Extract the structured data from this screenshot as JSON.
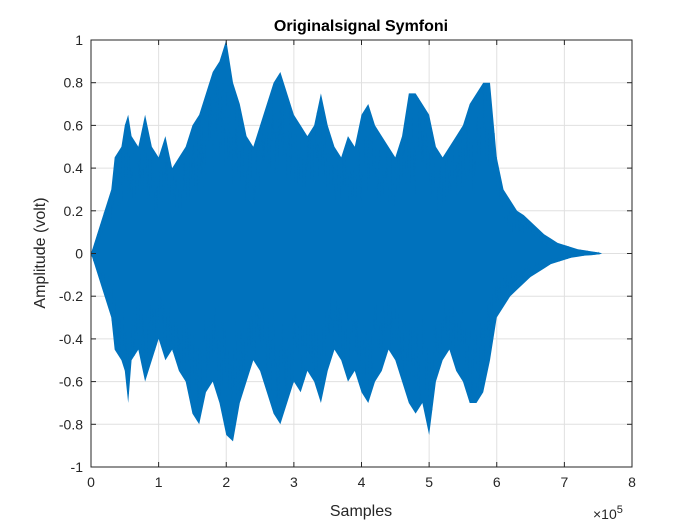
{
  "chart_data": {
    "type": "line",
    "title": "Originalsignal Symfoni",
    "xlabel": "Samples",
    "ylabel": "Amplitude (volt)",
    "x_exponent_label": "×10",
    "x_exponent_power": "5",
    "xlim": [
      0,
      8
    ],
    "ylim": [
      -1,
      1
    ],
    "x_ticks": [
      0,
      1,
      2,
      3,
      4,
      5,
      6,
      7,
      8
    ],
    "x_tick_labels": [
      "0",
      "1",
      "2",
      "3",
      "4",
      "5",
      "6",
      "7",
      "8"
    ],
    "y_ticks": [
      -1,
      -0.8,
      -0.6,
      -0.4,
      -0.2,
      0,
      0.2,
      0.4,
      0.6,
      0.8,
      1
    ],
    "y_tick_labels": [
      "-1",
      "-0.8",
      "-0.6",
      "-0.4",
      "-0.2",
      "0",
      "0.2",
      "0.4",
      "0.6",
      "0.8",
      "1"
    ],
    "grid": true,
    "series": [
      {
        "color": "#0072BD",
        "x": [
          0,
          0.05,
          0.15,
          0.3,
          0.35,
          0.45,
          0.5,
          0.55,
          0.6,
          0.7,
          0.8,
          0.9,
          1.0,
          1.1,
          1.2,
          1.3,
          1.4,
          1.5,
          1.6,
          1.7,
          1.8,
          1.9,
          2.0,
          2.1,
          2.2,
          2.3,
          2.4,
          2.5,
          2.6,
          2.7,
          2.8,
          2.9,
          3.0,
          3.1,
          3.2,
          3.3,
          3.4,
          3.5,
          3.6,
          3.7,
          3.8,
          3.9,
          4.0,
          4.1,
          4.2,
          4.3,
          4.4,
          4.5,
          4.6,
          4.7,
          4.8,
          4.9,
          5.0,
          5.1,
          5.2,
          5.3,
          5.4,
          5.5,
          5.6,
          5.7,
          5.8,
          5.9,
          6.0,
          6.1,
          6.2,
          6.3,
          6.4,
          6.5,
          6.6,
          6.7,
          6.8,
          6.9,
          7.0,
          7.1,
          7.2,
          7.3,
          7.4,
          7.5,
          7.55
        ],
        "upper": [
          0,
          0.05,
          0.15,
          0.3,
          0.45,
          0.5,
          0.6,
          0.65,
          0.55,
          0.5,
          0.65,
          0.5,
          0.45,
          0.55,
          0.4,
          0.45,
          0.5,
          0.6,
          0.65,
          0.75,
          0.85,
          0.9,
          1.0,
          0.8,
          0.7,
          0.55,
          0.5,
          0.6,
          0.7,
          0.8,
          0.85,
          0.75,
          0.65,
          0.6,
          0.55,
          0.6,
          0.75,
          0.6,
          0.5,
          0.45,
          0.55,
          0.5,
          0.65,
          0.7,
          0.6,
          0.55,
          0.5,
          0.45,
          0.55,
          0.75,
          0.75,
          0.7,
          0.65,
          0.5,
          0.45,
          0.5,
          0.55,
          0.6,
          0.7,
          0.75,
          0.8,
          0.8,
          0.45,
          0.3,
          0.25,
          0.2,
          0.18,
          0.15,
          0.12,
          0.09,
          0.07,
          0.05,
          0.04,
          0.03,
          0.02,
          0.015,
          0.01,
          0.005,
          0
        ],
        "lower": [
          0,
          -0.05,
          -0.15,
          -0.3,
          -0.45,
          -0.5,
          -0.55,
          -0.7,
          -0.5,
          -0.45,
          -0.6,
          -0.5,
          -0.4,
          -0.5,
          -0.45,
          -0.55,
          -0.6,
          -0.75,
          -0.8,
          -0.65,
          -0.6,
          -0.7,
          -0.85,
          -0.88,
          -0.7,
          -0.6,
          -0.5,
          -0.55,
          -0.65,
          -0.75,
          -0.8,
          -0.7,
          -0.6,
          -0.65,
          -0.55,
          -0.6,
          -0.7,
          -0.55,
          -0.45,
          -0.5,
          -0.6,
          -0.55,
          -0.65,
          -0.7,
          -0.6,
          -0.55,
          -0.45,
          -0.5,
          -0.6,
          -0.7,
          -0.75,
          -0.7,
          -0.85,
          -0.6,
          -0.5,
          -0.45,
          -0.55,
          -0.6,
          -0.7,
          -0.7,
          -0.65,
          -0.5,
          -0.3,
          -0.25,
          -0.2,
          -0.17,
          -0.14,
          -0.11,
          -0.09,
          -0.07,
          -0.05,
          -0.04,
          -0.03,
          -0.02,
          -0.015,
          -0.01,
          -0.008,
          -0.004,
          0
        ]
      }
    ]
  }
}
